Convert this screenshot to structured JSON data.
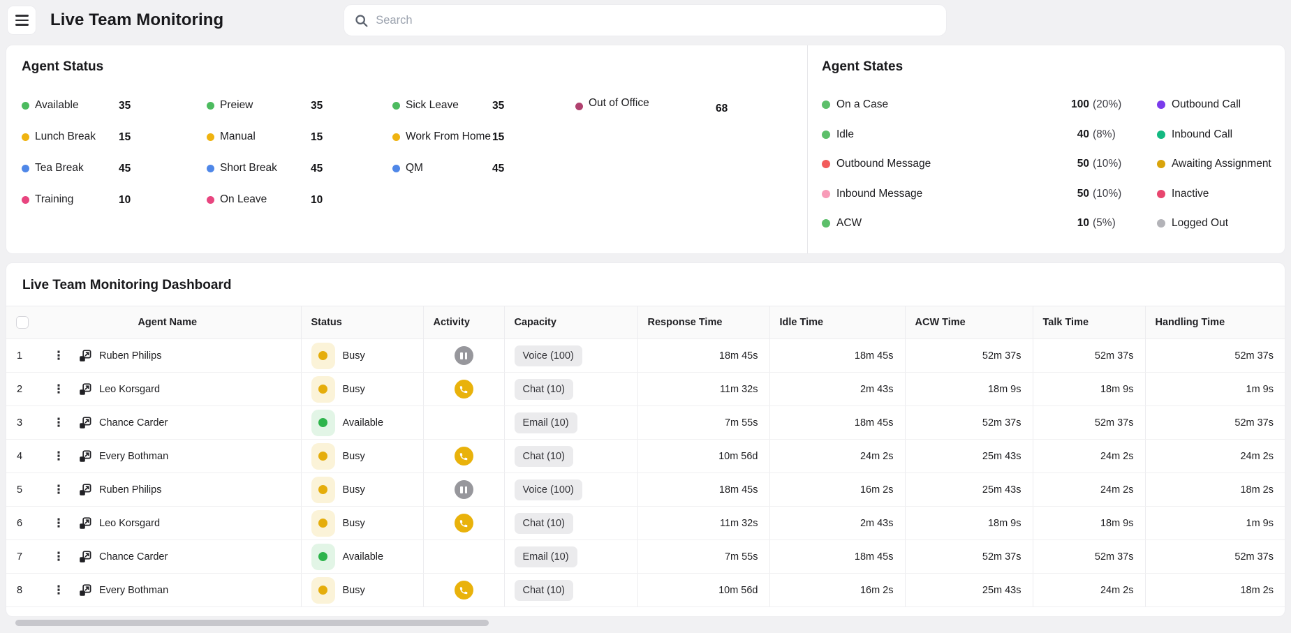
{
  "header": {
    "title": "Live Team Monitoring",
    "search_placeholder": "Search"
  },
  "agent_status": {
    "title": "Agent Status",
    "columns": [
      {
        "items": [
          {
            "label": "Available",
            "value": "35",
            "color": "#4cbb5f"
          },
          {
            "label": "Lunch Break",
            "value": "15",
            "color": "#efb310"
          },
          {
            "label": "Tea Break",
            "value": "45",
            "color": "#4f87e8"
          },
          {
            "label": "Training",
            "value": "10",
            "color": "#e8457f"
          }
        ]
      },
      {
        "items": [
          {
            "label": "Preiew",
            "value": "35",
            "color": "#4cbb5f"
          },
          {
            "label": "Manual",
            "value": "15",
            "color": "#efb310"
          },
          {
            "label": "Short Break",
            "value": "45",
            "color": "#4f87e8"
          },
          {
            "label": "On Leave",
            "value": "10",
            "color": "#e8457f"
          }
        ]
      },
      {
        "items": [
          {
            "label": "Sick Leave",
            "value": "35",
            "color": "#4cbb5f"
          },
          {
            "label": "Work From Home",
            "value": "15",
            "color": "#efb310"
          },
          {
            "label": "QM",
            "value": "45",
            "color": "#4f87e8"
          }
        ]
      },
      {
        "items": [
          {
            "label": "Out of Office",
            "value": "68",
            "color": "#b0416f"
          }
        ]
      }
    ]
  },
  "agent_states": {
    "title": "Agent States",
    "left": [
      {
        "label": "On a Case",
        "value": "100",
        "pct": "(20%)",
        "color": "#5cbf6a"
      },
      {
        "label": "Idle",
        "value": "40",
        "pct": "(8%)",
        "color": "#5cbf6a"
      },
      {
        "label": "Outbound Message",
        "value": "50",
        "pct": "(10%)",
        "color": "#f25c5c"
      },
      {
        "label": "Inbound Message",
        "value": "50",
        "pct": "(10%)",
        "color": "#f89bb8"
      },
      {
        "label": "ACW",
        "value": "10",
        "pct": "(5%)",
        "color": "#5cbf6a"
      }
    ],
    "right": [
      {
        "label": "Outbound Call",
        "color": "#7a3bec"
      },
      {
        "label": "Inbound Call",
        "color": "#13b981"
      },
      {
        "label": "Awaiting Assignment",
        "color": "#d9a40b"
      },
      {
        "label": "Inactive",
        "color": "#e8466e"
      },
      {
        "label": "Logged Out",
        "color": "#b3b3b8"
      }
    ]
  },
  "dashboard": {
    "title": "Live Team Monitoring Dashboard",
    "columns": [
      "Agent Name",
      "Status",
      "Activity",
      "Capacity",
      "Response Time",
      "Idle Time",
      "ACW Time",
      "Talk Time",
      "Handling Time"
    ],
    "status_styles": {
      "busy": {
        "label": "Busy",
        "dot": "#e5ad0b",
        "bg": "#fbf3d8"
      },
      "available": {
        "label": "Available",
        "dot": "#2db44b",
        "bg": "#e2f5e6"
      }
    },
    "activity_styles": {
      "pause": {
        "color": "#97979c"
      },
      "phone": {
        "color": "#e9b20b"
      }
    },
    "rows": [
      {
        "num": "1",
        "name": "Ruben Philips",
        "status": "busy",
        "activity": "pause",
        "capacity": "Voice (100)",
        "response": "18m 45s",
        "idle": "18m 45s",
        "acw": "52m 37s",
        "talk": "52m 37s",
        "handling": "52m 37s"
      },
      {
        "num": "2",
        "name": "Leo Korsgard",
        "status": "busy",
        "activity": "phone",
        "capacity": "Chat (10)",
        "response": "11m 32s",
        "idle": "2m 43s",
        "acw": "18m 9s",
        "talk": "18m 9s",
        "handling": "1m 9s"
      },
      {
        "num": "3",
        "name": "Chance Carder",
        "status": "available",
        "activity": "none",
        "capacity": "Email (10)",
        "response": "7m 55s",
        "idle": "18m 45s",
        "acw": "52m 37s",
        "talk": "52m 37s",
        "handling": "52m 37s"
      },
      {
        "num": "4",
        "name": "Every Bothman",
        "status": "busy",
        "activity": "phone",
        "capacity": "Chat (10)",
        "response": "10m 56d",
        "idle": "24m 2s",
        "acw": "25m 43s",
        "talk": "24m 2s",
        "handling": "24m 2s"
      },
      {
        "num": "5",
        "name": "Ruben Philips",
        "status": "busy",
        "activity": "pause",
        "capacity": "Voice (100)",
        "response": "18m 45s",
        "idle": "16m 2s",
        "acw": "25m 43s",
        "talk": "24m 2s",
        "handling": "18m 2s"
      },
      {
        "num": "6",
        "name": "Leo Korsgard",
        "status": "busy",
        "activity": "phone",
        "capacity": "Chat (10)",
        "response": "11m 32s",
        "idle": "2m 43s",
        "acw": "18m 9s",
        "talk": "18m 9s",
        "handling": "1m 9s"
      },
      {
        "num": "7",
        "name": "Chance Carder",
        "status": "available",
        "activity": "none",
        "capacity": "Email (10)",
        "response": "7m 55s",
        "idle": "18m 45s",
        "acw": "52m 37s",
        "talk": "52m 37s",
        "handling": "52m 37s"
      },
      {
        "num": "8",
        "name": "Every Bothman",
        "status": "busy",
        "activity": "phone",
        "capacity": "Chat (10)",
        "response": "10m 56d",
        "idle": "16m 2s",
        "acw": "25m 43s",
        "talk": "24m 2s",
        "handling": "18m 2s"
      }
    ]
  }
}
